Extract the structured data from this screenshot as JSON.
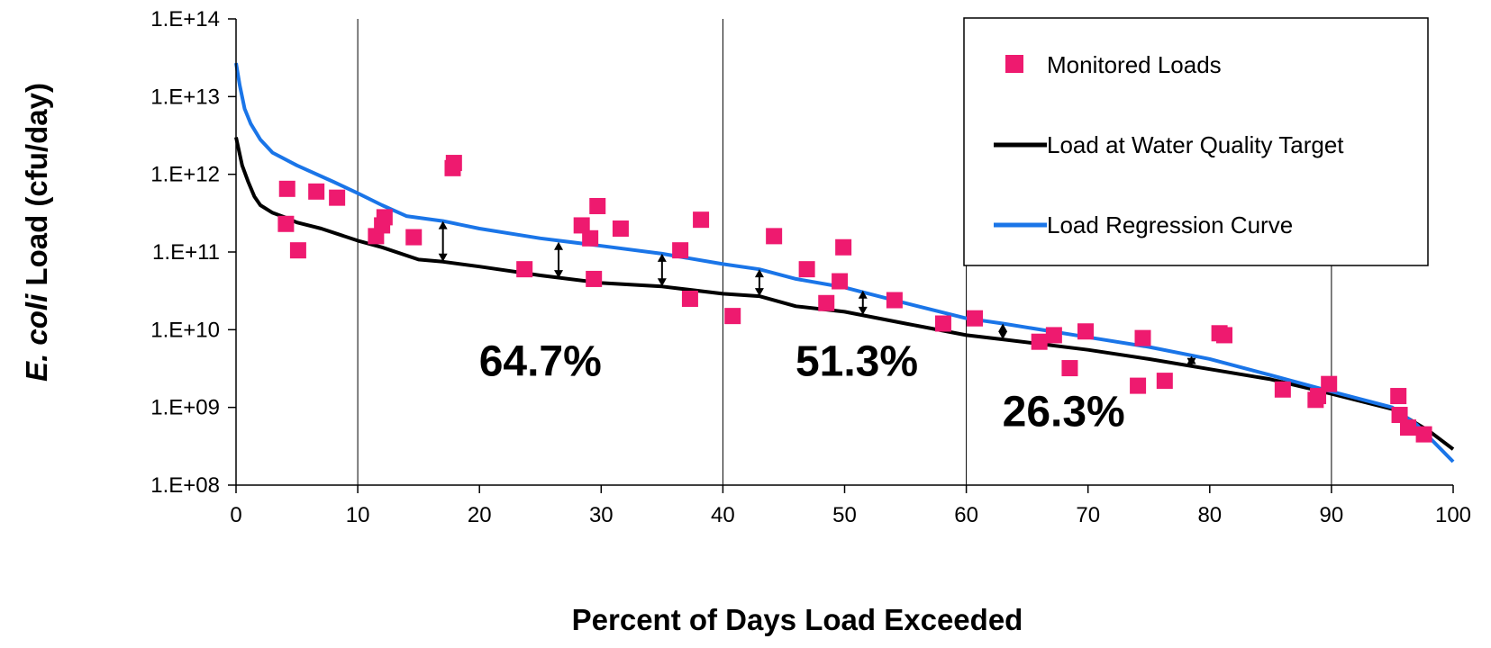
{
  "chart_data": {
    "type": "scatter",
    "title": "",
    "xlabel": "Percent of Days Load Exceeded",
    "ylabel_italic": "E. coli",
    "ylabel_rest": " Load (cfu/day)",
    "xlim": [
      0,
      100
    ],
    "ylim": [
      100000000,
      100000000000000
    ],
    "yscale": "log",
    "x_ticks": [
      "0",
      "10",
      "20",
      "30",
      "40",
      "50",
      "60",
      "70",
      "80",
      "90",
      "100"
    ],
    "y_ticks": [
      "1.E+08",
      "1.E+09",
      "1.E+10",
      "1.E+11",
      "1.E+12",
      "1.E+13",
      "1.E+14"
    ],
    "grid": false,
    "zone_dividers_x": [
      10,
      40,
      60,
      90
    ],
    "zone_divider_ymax": [
      100000000000000,
      100000000000000,
      400000000000,
      400000000000
    ],
    "annotations": [
      {
        "text": "64.7%",
        "x": 25,
        "y": 4000000000
      },
      {
        "text": "51.3%",
        "x": 51,
        "y": 4000000000
      },
      {
        "text": "26.3%",
        "x": 68,
        "y": 900000000
      }
    ],
    "legend": {
      "placement": "top-right"
    },
    "series": [
      {
        "name": "Monitored Loads",
        "kind": "scatter",
        "color": "#ee1a6f",
        "points": [
          [
            4.2,
            650000000000
          ],
          [
            4.1,
            230000000000
          ],
          [
            5.1,
            105000000000
          ],
          [
            6.6,
            600000000000
          ],
          [
            8.3,
            500000000000
          ],
          [
            11.5,
            160000000000
          ],
          [
            12.0,
            220000000000
          ],
          [
            12.2,
            280000000000
          ],
          [
            14.6,
            155000000000
          ],
          [
            17.8,
            1200000000000
          ],
          [
            17.9,
            1400000000000
          ],
          [
            23.7,
            60000000000
          ],
          [
            28.4,
            220000000000
          ],
          [
            29.1,
            150000000000
          ],
          [
            29.4,
            45000000000
          ],
          [
            29.7,
            390000000000
          ],
          [
            31.6,
            200000000000
          ],
          [
            36.5,
            105000000000
          ],
          [
            37.3,
            25000000000
          ],
          [
            38.2,
            260000000000
          ],
          [
            40.8,
            15000000000
          ],
          [
            44.2,
            160000000000
          ],
          [
            46.9,
            60000000000
          ],
          [
            48.5,
            22000000000
          ],
          [
            49.6,
            42000000000
          ],
          [
            49.9,
            115000000000
          ],
          [
            54.1,
            24000000000
          ],
          [
            58.1,
            12000000000
          ],
          [
            60.7,
            14000000000
          ],
          [
            66.0,
            7000000000
          ],
          [
            67.2,
            8500000000
          ],
          [
            68.5,
            3200000000
          ],
          [
            69.8,
            9500000000
          ],
          [
            74.1,
            1900000000
          ],
          [
            74.5,
            7800000000
          ],
          [
            76.3,
            2200000000
          ],
          [
            80.8,
            9000000000
          ],
          [
            81.2,
            8500000000
          ],
          [
            86.0,
            1700000000
          ],
          [
            88.7,
            1250000000
          ],
          [
            88.9,
            1400000000
          ],
          [
            89.8,
            2000000000
          ],
          [
            95.5,
            1400000000
          ],
          [
            95.6,
            800000000
          ],
          [
            96.3,
            550000000
          ],
          [
            97.6,
            450000000
          ]
        ]
      },
      {
        "name": "Load at Water Quality Target",
        "kind": "line",
        "color": "#000000",
        "points": [
          [
            0,
            3000000000000
          ],
          [
            0.5,
            1300000000000
          ],
          [
            1.0,
            800000000000
          ],
          [
            1.5,
            520000000000
          ],
          [
            2,
            400000000000
          ],
          [
            3,
            320000000000
          ],
          [
            4,
            280000000000
          ],
          [
            5,
            240000000000
          ],
          [
            7,
            200000000000
          ],
          [
            10,
            140000000000
          ],
          [
            12,
            115000000000
          ],
          [
            15,
            80000000000
          ],
          [
            17,
            75000000000
          ],
          [
            20,
            65000000000
          ],
          [
            25,
            50000000000
          ],
          [
            30,
            40000000000
          ],
          [
            35,
            36000000000
          ],
          [
            40,
            29000000000
          ],
          [
            43,
            27000000000
          ],
          [
            46,
            20000000000
          ],
          [
            50,
            17000000000
          ],
          [
            55,
            12000000000
          ],
          [
            60,
            8500000000
          ],
          [
            63,
            7500000000
          ],
          [
            70,
            5500000000
          ],
          [
            75,
            4200000000
          ],
          [
            80,
            3100000000
          ],
          [
            85,
            2300000000
          ],
          [
            90,
            1500000000
          ],
          [
            95,
            950000000
          ],
          [
            98,
            500000000
          ],
          [
            100,
            290000000
          ]
        ]
      },
      {
        "name": "Load Regression Curve",
        "kind": "line",
        "color": "#1a75e8",
        "points": [
          [
            0,
            27000000000000
          ],
          [
            0.3,
            14000000000000
          ],
          [
            0.7,
            7000000000000
          ],
          [
            1.2,
            4500000000000
          ],
          [
            2,
            2800000000000
          ],
          [
            3,
            1900000000000
          ],
          [
            5,
            1300000000000
          ],
          [
            8,
            800000000000
          ],
          [
            10,
            570000000000
          ],
          [
            12,
            400000000000
          ],
          [
            14,
            290000000000
          ],
          [
            17,
            250000000000
          ],
          [
            20,
            200000000000
          ],
          [
            25,
            150000000000
          ],
          [
            30,
            120000000000
          ],
          [
            35,
            95000000000
          ],
          [
            40,
            70000000000
          ],
          [
            43,
            60000000000
          ],
          [
            46,
            45000000000
          ],
          [
            50,
            35000000000
          ],
          [
            55,
            22000000000
          ],
          [
            60,
            14000000000
          ],
          [
            63,
            12000000000
          ],
          [
            70,
            8000000000
          ],
          [
            75,
            6000000000
          ],
          [
            80,
            4200000000
          ],
          [
            85,
            2600000000
          ],
          [
            90,
            1600000000
          ],
          [
            95,
            1000000000
          ],
          [
            97,
            600000000
          ],
          [
            100,
            200000000
          ]
        ]
      }
    ],
    "arrows": [
      {
        "x": 17,
        "y_low": 75000000000,
        "y_high": 250000000000
      },
      {
        "x": 26.5,
        "y_low": 46000000000,
        "y_high": 135000000000
      },
      {
        "x": 35,
        "y_low": 36000000000,
        "y_high": 95000000000
      },
      {
        "x": 43,
        "y_low": 27000000000,
        "y_high": 60000000000
      },
      {
        "x": 51.5,
        "y_low": 15500000000,
        "y_high": 32000000000
      },
      {
        "x": 63,
        "y_low": 7500000000,
        "y_high": 12000000000
      },
      {
        "x": 78.5,
        "y_low": 3400000000,
        "y_high": 4600000000
      }
    ]
  }
}
